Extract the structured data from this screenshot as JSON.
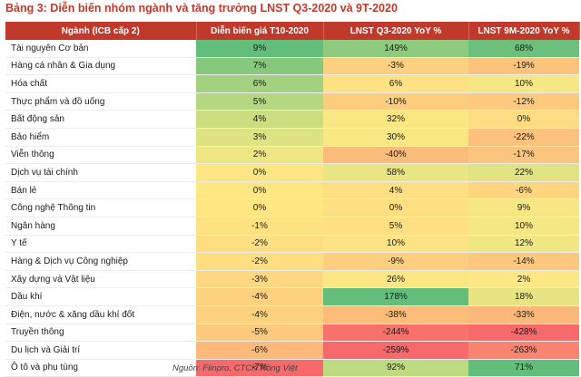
{
  "title": "Bảng 3: Diễn biến nhóm ngành và tăng trưởng LNST Q3-2020 và 9T-2020",
  "headers": [
    "Ngành (ICB cấp 2)",
    "Diễn biến giá T10-2020",
    "LNST Q3-2020 YoY %",
    "LNST 9M-2020 YoY %"
  ],
  "rows": [
    {
      "name": "Tài nguyên Cơ bản",
      "price": "9%",
      "q3": "149%",
      "m9": "68%",
      "colors": [
        "#63be7b",
        "#8ecb7e",
        "#6cc07c"
      ]
    },
    {
      "name": "Hàng cá nhân & Gia dụng",
      "price": "7%",
      "q3": "-3%",
      "m9": "-19%",
      "colors": [
        "#86c97d",
        "#fdd07f",
        "#fcc37c"
      ]
    },
    {
      "name": "Hóa chất",
      "price": "6%",
      "q3": "6%",
      "m9": "10%",
      "colors": [
        "#a2d17f",
        "#fee182",
        "#f4e784"
      ]
    },
    {
      "name": "Thực phẩm và đồ uống",
      "price": "5%",
      "q3": "-10%",
      "m9": "-12%",
      "colors": [
        "#b4d780",
        "#fdcd7e",
        "#fdca7d"
      ]
    },
    {
      "name": "Bất động sản",
      "price": "4%",
      "q3": "32%",
      "m9": "0%",
      "colors": [
        "#cbdd81",
        "#f8e783",
        "#fedd82"
      ]
    },
    {
      "name": "Bảo hiểm",
      "price": "3%",
      "q3": "30%",
      "m9": "-22%",
      "colors": [
        "#dde282",
        "#f9e783",
        "#fcc17c"
      ]
    },
    {
      "name": "Viễn thông",
      "price": "2%",
      "q3": "-40%",
      "m9": "-17%",
      "colors": [
        "#eee683",
        "#fbbc7b",
        "#fcc57d"
      ]
    },
    {
      "name": "Dịch vụ tài chính",
      "price": "0%",
      "q3": "58%",
      "m9": "22%",
      "colors": [
        "#fee783",
        "#eae583",
        "#e1e383"
      ]
    },
    {
      "name": "Bán lẻ",
      "price": "0%",
      "q3": "4%",
      "m9": "-6%",
      "colors": [
        "#fee783",
        "#fee082",
        "#fed680"
      ]
    },
    {
      "name": "Công nghệ Thông tin",
      "price": "0%",
      "q3": "0%",
      "m9": "9%",
      "colors": [
        "#fee783",
        "#fedf82",
        "#f6e784"
      ]
    },
    {
      "name": "Ngân hàng",
      "price": "-1%",
      "q3": "5%",
      "m9": "10%",
      "colors": [
        "#fee282",
        "#fee082",
        "#f4e784"
      ]
    },
    {
      "name": "Y tế",
      "price": "-2%",
      "q3": "10%",
      "m9": "12%",
      "colors": [
        "#fede81",
        "#fde383",
        "#f1e684"
      ]
    },
    {
      "name": "Hàng & Dịch vụ Công nghiệp",
      "price": "-2%",
      "q3": "-9%",
      "m9": "-14%",
      "colors": [
        "#fede81",
        "#fdce7e",
        "#fdc77d"
      ]
    },
    {
      "name": "Xây dựng và Vật liệu",
      "price": "-3%",
      "q3": "26%",
      "m9": "2%",
      "colors": [
        "#fdd880",
        "#fae683",
        "#fbe783"
      ]
    },
    {
      "name": "Dầu khí",
      "price": "-4%",
      "q3": "178%",
      "m9": "18%",
      "colors": [
        "#fcd27f",
        "#63be7b",
        "#e7e583"
      ]
    },
    {
      "name": "Điện, nước & xăng dầu khí đốt",
      "price": "-4%",
      "q3": "-38%",
      "m9": "-33%",
      "colors": [
        "#fcd27f",
        "#fcbd7b",
        "#fbb87a"
      ]
    },
    {
      "name": "Truyền thông",
      "price": "-5%",
      "q3": "-244%",
      "m9": "-428%",
      "colors": [
        "#fcc97d",
        "#f8716b",
        "#f8696b"
      ]
    },
    {
      "name": "Du lịch và Giải trí",
      "price": "-6%",
      "q3": "-259%",
      "m9": "-263%",
      "colors": [
        "#fbba7a",
        "#f8696b",
        "#f98570"
      ]
    },
    {
      "name": "Ô tô và phụ tùng",
      "price": "-7%",
      "q3": "92%",
      "m9": "71%",
      "colors": [
        "#f8696b",
        "#bedb81",
        "#63be7b"
      ]
    }
  ],
  "source": "Nguồn: Fiinpro, CTCK Rồng Việt"
}
